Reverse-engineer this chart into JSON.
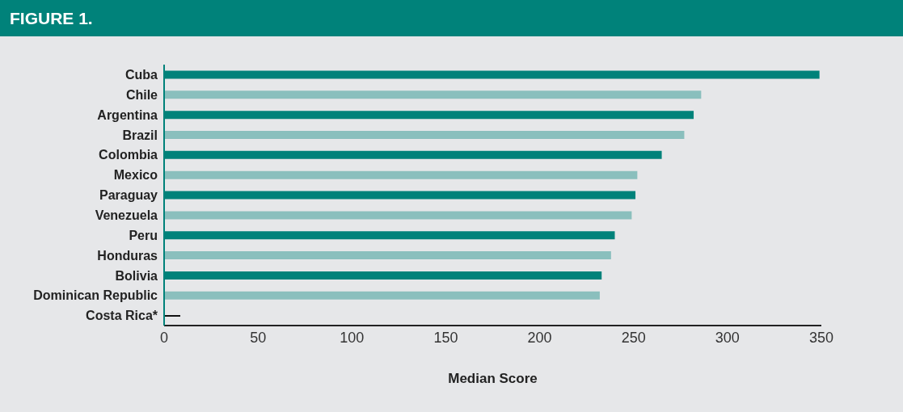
{
  "chart_data": {
    "type": "bar",
    "orientation": "horizontal",
    "title": "FIGURE 1.",
    "xlabel": "Median Score",
    "categories": [
      "Cuba",
      "Chile",
      "Argentina",
      "Brazil",
      "Colombia",
      "Mexico",
      "Paraguay",
      "Venezuela",
      "Peru",
      "Honduras",
      "Bolivia",
      "Dominican Republic",
      "Costa Rica*"
    ],
    "values": [
      349,
      286,
      282,
      277,
      265,
      252,
      251,
      249,
      240,
      238,
      233,
      232,
      null
    ],
    "colors": [
      "#00827a",
      "#8abfbd",
      "#00827a",
      "#8abfbd",
      "#00827a",
      "#8abfbd",
      "#00827a",
      "#8abfbd",
      "#00827a",
      "#8abfbd",
      "#00827a",
      "#8abfbd",
      "#00827a"
    ],
    "xlim": [
      0,
      350
    ],
    "xticks": [
      0,
      50,
      100,
      150,
      200,
      250,
      300,
      350
    ],
    "grid": false,
    "legend": false
  }
}
